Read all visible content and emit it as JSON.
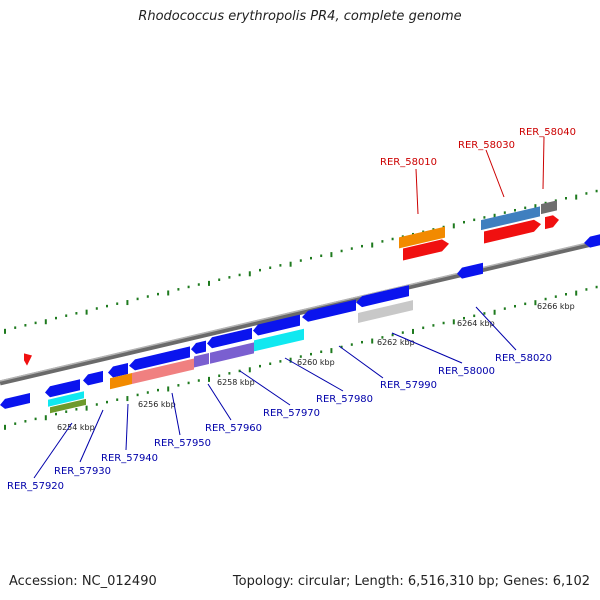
{
  "header": {
    "title": "Rhodococcus erythropolis PR4, complete genome"
  },
  "footer": {
    "accession": "Accession: NC_012490",
    "topology": "Topology: circular; Length: 6,516,310 bp; Genes: 6,102"
  },
  "colors": {
    "backbone": "#8a8a8a",
    "tick": "#1e7a1e",
    "forward_label": "#cc0000",
    "reverse_label": "#0000aa",
    "blue": "#0a14ee",
    "red": "#f01010",
    "orange": "#f28a00",
    "steelblue": "#3f7fbf",
    "gray": "#6e6e6e",
    "lightgray": "#c8c8c8",
    "salmon": "#f08080",
    "purple": "#7a5fd0",
    "cyan": "#10e8f0",
    "olive": "#6d9a2c"
  },
  "scale": {
    "unit_suffix": "kbp",
    "labels": [
      "6254 kbp",
      "6256 kbp",
      "6258 kbp",
      "6260 kbp",
      "6262 kbp",
      "6264 kbp",
      "6266 kbp"
    ]
  },
  "genes": {
    "forward_labels": [
      "RER_58010",
      "RER_58030",
      "RER_58040"
    ],
    "reverse_labels": [
      "RER_57920",
      "RER_57930",
      "RER_57940",
      "RER_57950",
      "RER_57960",
      "RER_57970",
      "RER_57980",
      "RER_57990",
      "RER_58000",
      "RER_58020"
    ]
  }
}
